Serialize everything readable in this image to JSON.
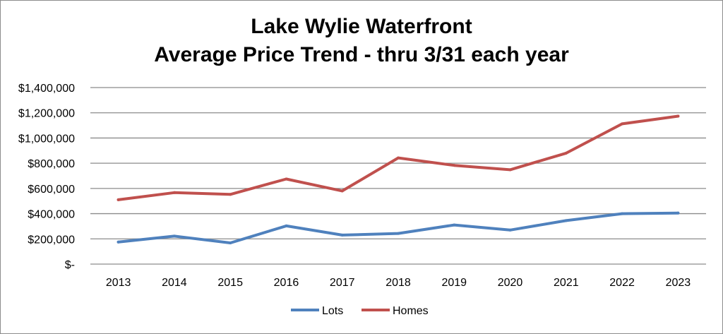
{
  "chart_data": {
    "type": "line",
    "title": [
      "Lake Wylie Waterfront",
      "Average Price Trend - thru 3/31 each year"
    ],
    "categories": [
      "2013",
      "2014",
      "2015",
      "2016",
      "2017",
      "2018",
      "2019",
      "2020",
      "2021",
      "2022",
      "2023"
    ],
    "ylim": [
      0,
      1400000
    ],
    "y_ticks": [
      0,
      200000,
      400000,
      600000,
      800000,
      1000000,
      1200000,
      1400000
    ],
    "y_tick_labels": [
      "$-",
      "$200,000",
      "$400,000",
      "$600,000",
      "$800,000",
      "$1,000,000",
      "$1,200,000",
      "$1,400,000"
    ],
    "grid": "horizontal",
    "legend_position": "bottom",
    "series": [
      {
        "name": "Lots",
        "color": "#4f81bd",
        "values": [
          175000,
          222000,
          168000,
          303000,
          230000,
          243000,
          310000,
          270000,
          345000,
          400000,
          405000
        ]
      },
      {
        "name": "Homes",
        "color": "#c0504d",
        "values": [
          510000,
          567000,
          553000,
          675000,
          580000,
          842000,
          783000,
          748000,
          880000,
          1112000,
          1173000
        ]
      }
    ]
  }
}
